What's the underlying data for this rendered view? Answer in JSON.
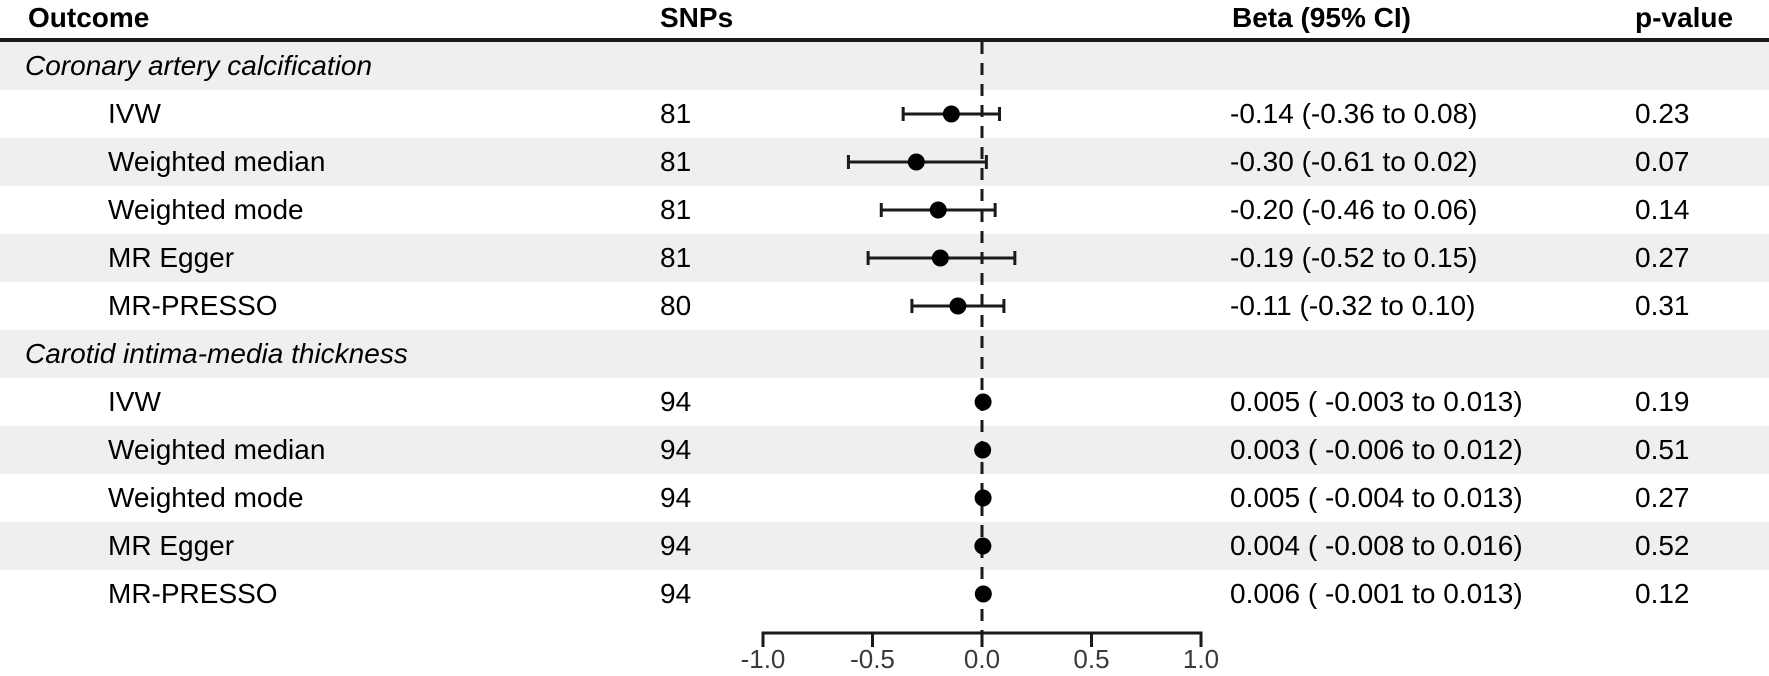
{
  "chart_data": {
    "type": "forest",
    "title": "",
    "columns": {
      "outcome": "Outcome",
      "snps": "SNPs",
      "beta": "Beta (95% CI)",
      "p": "p-value"
    },
    "x_axis": {
      "tick_labels": [
        "-1.0",
        "-0.5",
        "0.0",
        "0.5",
        "1.0"
      ],
      "tick_values": [
        -1.0,
        -0.5,
        0.0,
        0.5,
        1.0
      ],
      "xlim": [
        -1.0,
        1.0
      ],
      "zero_line": 0.0,
      "grid": false
    },
    "groups": [
      {
        "label": "Coronary artery calcification",
        "rows": [
          {
            "method": "IVW",
            "snps": "81",
            "beta": -0.14,
            "ci_low": -0.36,
            "ci_high": 0.08,
            "beta_text": "-0.14 (-0.36 to 0.08)",
            "p_value": "0.23"
          },
          {
            "method": "Weighted median",
            "snps": "81",
            "beta": -0.3,
            "ci_low": -0.61,
            "ci_high": 0.02,
            "beta_text": "-0.30 (-0.61 to 0.02)",
            "p_value": "0.07"
          },
          {
            "method": "Weighted mode",
            "snps": "81",
            "beta": -0.2,
            "ci_low": -0.46,
            "ci_high": 0.06,
            "beta_text": "-0.20 (-0.46 to 0.06)",
            "p_value": "0.14"
          },
          {
            "method": "MR Egger",
            "snps": "81",
            "beta": -0.19,
            "ci_low": -0.52,
            "ci_high": 0.15,
            "beta_text": "-0.19 (-0.52 to 0.15)",
            "p_value": "0.27"
          },
          {
            "method": "MR-PRESSO",
            "snps": "80",
            "beta": -0.11,
            "ci_low": -0.32,
            "ci_high": 0.1,
            "beta_text": "-0.11 (-0.32 to 0.10)",
            "p_value": "0.31"
          }
        ]
      },
      {
        "label": "Carotid intima-media thickness",
        "rows": [
          {
            "method": "IVW",
            "snps": "94",
            "beta": 0.005,
            "ci_low": -0.003,
            "ci_high": 0.013,
            "beta_text": "0.005 ( -0.003 to 0.013)",
            "p_value": "0.19"
          },
          {
            "method": "Weighted median",
            "snps": "94",
            "beta": 0.003,
            "ci_low": -0.006,
            "ci_high": 0.012,
            "beta_text": "0.003 ( -0.006 to 0.012)",
            "p_value": "0.51"
          },
          {
            "method": "Weighted mode",
            "snps": "94",
            "beta": 0.005,
            "ci_low": -0.004,
            "ci_high": 0.013,
            "beta_text": "0.005 ( -0.004 to 0.013)",
            "p_value": "0.27"
          },
          {
            "method": "MR Egger",
            "snps": "94",
            "beta": 0.004,
            "ci_low": -0.008,
            "ci_high": 0.016,
            "beta_text": "0.004 ( -0.008 to 0.016)",
            "p_value": "0.52"
          },
          {
            "method": "MR-PRESSO",
            "snps": "94",
            "beta": 0.006,
            "ci_low": -0.001,
            "ci_high": 0.013,
            "beta_text": "0.006 ( -0.001 to 0.013)",
            "p_value": "0.12"
          }
        ]
      }
    ],
    "colors": {
      "stripe": "#efefef",
      "marker": "#000000",
      "line": "#1a1a1a",
      "axis_text": "#3a3a3a"
    }
  }
}
